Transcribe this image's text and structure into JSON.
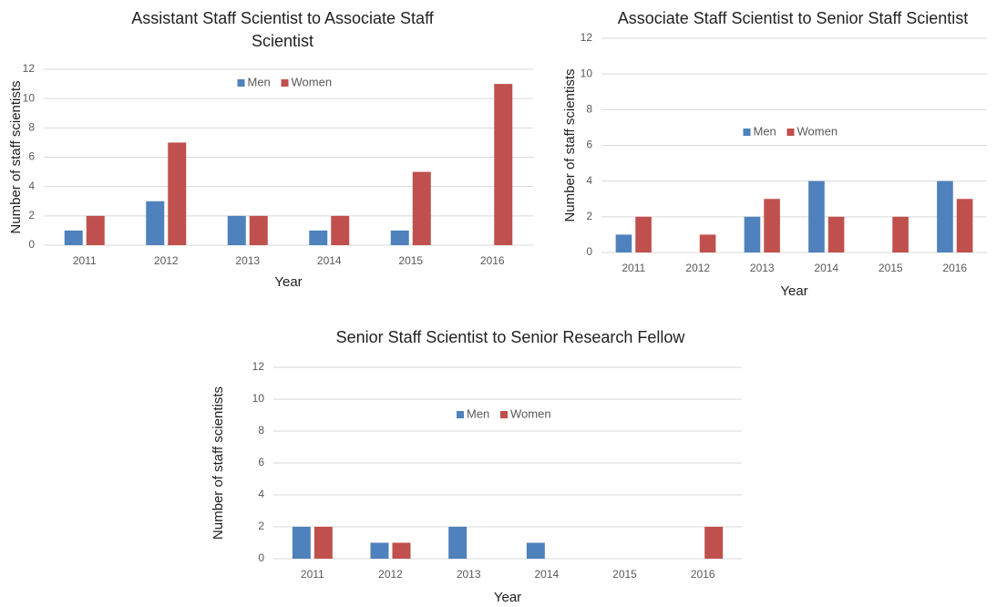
{
  "chart_data": [
    {
      "type": "bar",
      "title": "Assistant Staff Scientist to Associate Staff Scientist",
      "x_label": "Year",
      "y_label": "Number of staff scientists",
      "categories": [
        "2011",
        "2012",
        "2013",
        "2014",
        "2015",
        "2016"
      ],
      "series": [
        {
          "name": "Men",
          "color": "#4f81bd",
          "values": [
            1,
            3,
            2,
            1,
            1,
            null
          ]
        },
        {
          "name": "Women",
          "color": "#c0504d",
          "values": [
            2,
            7,
            2,
            2,
            5,
            11
          ]
        }
      ],
      "ylim": [
        0,
        12
      ],
      "yticks": [
        0,
        2,
        4,
        6,
        8,
        10,
        12
      ],
      "grid": true,
      "legend": "top"
    },
    {
      "type": "bar",
      "title": "Associate Staff Scientist to Senior Staff Scientist",
      "x_label": "Year",
      "y_label": "Number of staff scientists",
      "categories": [
        "2011",
        "2012",
        "2013",
        "2014",
        "2015",
        "2016"
      ],
      "series": [
        {
          "name": "Men",
          "color": "#4f81bd",
          "values": [
            1,
            null,
            2,
            4,
            null,
            4
          ]
        },
        {
          "name": "Women",
          "color": "#c0504d",
          "values": [
            2,
            1,
            3,
            2,
            2,
            3
          ]
        }
      ],
      "ylim": [
        0,
        12
      ],
      "yticks": [
        0,
        2,
        4,
        6,
        8,
        10,
        12
      ],
      "grid": true,
      "legend": "center"
    },
    {
      "type": "bar",
      "title": "Senior Staff Scientist to Senior Research Fellow",
      "x_label": "Year",
      "y_label": "Number of staff scientists",
      "categories": [
        "2011",
        "2012",
        "2013",
        "2014",
        "2015",
        "2016"
      ],
      "series": [
        {
          "name": "Men",
          "color": "#4f81bd",
          "values": [
            2,
            1,
            2,
            1,
            null,
            null
          ]
        },
        {
          "name": "Women",
          "color": "#c0504d",
          "values": [
            2,
            1,
            null,
            null,
            null,
            2
          ]
        }
      ],
      "ylim": [
        0,
        12
      ],
      "yticks": [
        0,
        2,
        4,
        6,
        8,
        10,
        12
      ],
      "grid": true,
      "legend": "top"
    }
  ]
}
